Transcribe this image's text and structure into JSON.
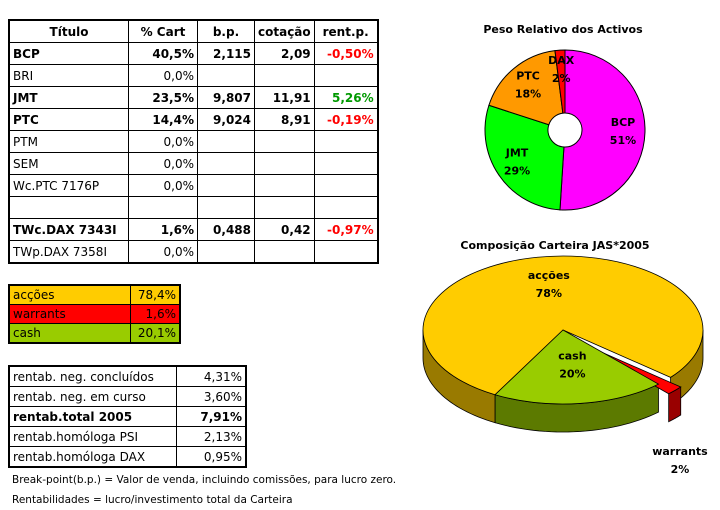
{
  "table": {
    "header": [
      "Título",
      "% Cart",
      "b.p.",
      "cotação",
      "rent.p."
    ],
    "groups": [
      [
        {
          "cells": [
            "BCP",
            "40,5%",
            "2,115",
            "2,09",
            "-0,50%"
          ],
          "bold": true
        },
        {
          "cells": [
            "BRI",
            "0,0%",
            null,
            null,
            null
          ]
        },
        {
          "cells": [
            "JMT",
            "23,5%",
            "9,807",
            "11,91",
            "5,26%"
          ],
          "bold": true
        },
        {
          "cells": [
            "PTC",
            "14,4%",
            "9,024",
            "8,91",
            "-0,19%"
          ],
          "bold": true
        },
        {
          "cells": [
            "PTM",
            "0,0%",
            null,
            null,
            null
          ]
        },
        {
          "cells": [
            "SEM",
            "0,0%",
            null,
            null,
            null
          ]
        },
        {
          "cells": [
            "Wc.PTC 7176P",
            "0,0%",
            null,
            null,
            null
          ]
        }
      ],
      [
        {
          "cells": [
            "TWc.DAX 7343I",
            "1,6%",
            "0,488",
            "0,42",
            "-0,97%"
          ],
          "bold": true
        },
        {
          "cells": [
            "TWp.DAX 7358I",
            "0,0%",
            null,
            null,
            null
          ]
        }
      ]
    ]
  },
  "allocation": {
    "rows": [
      {
        "label": "acções",
        "value": "78,4%",
        "color": "#ffcc00"
      },
      {
        "label": "warrants",
        "value": "1,6%",
        "color": "#ff0000"
      },
      {
        "label": "cash",
        "value": "20,1%",
        "color": "#99cc00"
      }
    ]
  },
  "returns": {
    "rows": [
      {
        "label": "rentab. neg. concluídos",
        "value": "4,31%"
      },
      {
        "label": "rentab. neg. em curso",
        "value": "3,60%"
      },
      {
        "label": "rentab.total 2005",
        "value": "7,91%",
        "bold": true
      },
      {
        "label": "rentab.homóloga PSI",
        "value": "2,13%"
      },
      {
        "label": "rentab.homóloga DAX",
        "value": "0,95%"
      }
    ]
  },
  "notes": [
    "Break-point(b.p.) = Valor de venda, incluindo comissões, para lucro zero.",
    "Rentabilidades = lucro/investimento total da Carteira"
  ],
  "chart_data": [
    {
      "type": "pie",
      "donut": true,
      "title": "Peso Relativo dos Activos",
      "categories": [
        "BCP",
        "JMT",
        "PTC",
        "DAX"
      ],
      "values": [
        51,
        29,
        18,
        2
      ],
      "value_labels": [
        "51%",
        "29%",
        "18%",
        "2%"
      ],
      "colors": [
        "#ff00ff",
        "#00ff00",
        "#ff9900",
        "#ff0000"
      ]
    },
    {
      "type": "pie",
      "three_d": true,
      "title": "Composição Carteira JAS*2005",
      "categories": [
        "acções",
        "warrants",
        "cash"
      ],
      "values": [
        78,
        2,
        20
      ],
      "value_labels": [
        "78%",
        "2%",
        "20%"
      ],
      "colors": [
        "#ffcc00",
        "#ff0000",
        "#99cc00"
      ]
    }
  ]
}
